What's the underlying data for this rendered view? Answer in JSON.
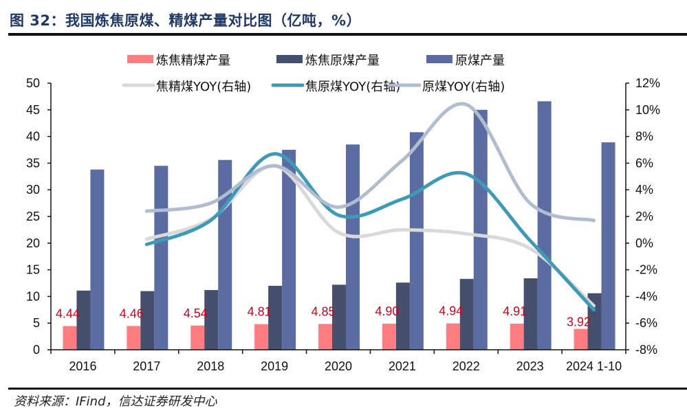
{
  "header": {
    "title": "图 32：我国炼焦原煤、精煤产量对比图（亿吨，%）"
  },
  "footer": {
    "source": "资料来源：IFind，信达证券研发中心"
  },
  "chart_data": {
    "type": "bar",
    "title": "我国炼焦原煤、精煤产量对比图（亿吨，%）",
    "categories": [
      "2016",
      "2017",
      "2018",
      "2019",
      "2020",
      "2021",
      "2022",
      "2023",
      "2024 1-10"
    ],
    "left_axis": {
      "label": "亿吨",
      "range": [
        0,
        50
      ],
      "ticks": [
        "0",
        "5",
        "10",
        "15",
        "20",
        "25",
        "30",
        "35",
        "40",
        "45",
        "50"
      ],
      "tick_values": [
        0,
        5,
        10,
        15,
        20,
        25,
        30,
        35,
        40,
        45,
        50
      ]
    },
    "right_axis": {
      "label": "%",
      "range": [
        -8,
        12
      ],
      "ticks": [
        "-8%",
        "-6%",
        "-4%",
        "-2%",
        "0%",
        "2%",
        "4%",
        "6%",
        "8%",
        "10%",
        "12%"
      ],
      "tick_values": [
        -8,
        -6,
        -4,
        -2,
        0,
        2,
        4,
        6,
        8,
        10,
        12
      ]
    },
    "grid": false,
    "legend_position": "top",
    "series": [
      {
        "name": "炼焦精煤产量",
        "kind": "bar",
        "axis": "left",
        "color": "#ff7c80",
        "values": [
          4.44,
          4.46,
          4.54,
          4.81,
          4.85,
          4.9,
          4.94,
          4.91,
          3.92
        ],
        "data_labels": [
          "4.44",
          "4.46",
          "4.54",
          "4.81",
          "4.85",
          "4.90",
          "4.94",
          "4.91",
          "3.92"
        ],
        "data_label_color": "#d0021b"
      },
      {
        "name": "炼焦原煤产量",
        "kind": "bar",
        "axis": "left",
        "color": "#44506e",
        "values": [
          11.1,
          11.0,
          11.2,
          12.0,
          12.2,
          12.6,
          13.3,
          13.4,
          10.6
        ]
      },
      {
        "name": "原煤产量",
        "kind": "bar",
        "axis": "left",
        "color": "#5b6ca2",
        "values": [
          33.8,
          34.5,
          35.6,
          37.5,
          38.5,
          40.8,
          45.0,
          46.6,
          38.9
        ]
      },
      {
        "name": "焦精煤YOY(右轴)",
        "kind": "line",
        "axis": "right",
        "color": "#d9d9d9",
        "values": [
          null,
          0.3,
          1.8,
          5.8,
          0.8,
          1.0,
          0.7,
          -0.4,
          -4.7
        ]
      },
      {
        "name": "焦原煤YOY(右轴)",
        "kind": "line",
        "axis": "right",
        "color": "#3e9ab7",
        "values": [
          null,
          -0.1,
          1.7,
          6.7,
          2.1,
          3.3,
          5.2,
          0.2,
          -5.0
        ]
      },
      {
        "name": "原煤YOY(右轴)",
        "kind": "line",
        "axis": "right",
        "color": "#b0bdd0",
        "values": [
          null,
          2.4,
          3.0,
          5.8,
          2.7,
          6.2,
          10.4,
          3.0,
          1.7
        ]
      }
    ]
  }
}
